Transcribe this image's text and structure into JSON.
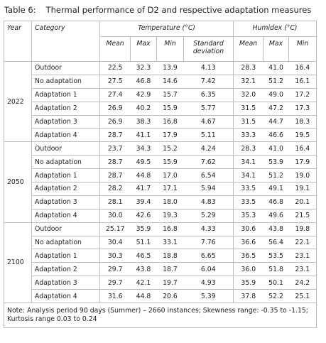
{
  "title": {
    "label": "Table 6:",
    "text": "Thermal performance of D2 and respective adaptation measures"
  },
  "header": {
    "year": "Year",
    "category": "Category",
    "temperature": "Temperature (°C)",
    "humidex": "Humidex (°C)",
    "sub": [
      "Mean",
      "Max",
      "Min",
      "Standard deviation",
      "Mean",
      "Max",
      "Min"
    ]
  },
  "groups": [
    {
      "year": "2022",
      "rows": [
        {
          "category": "Outdoor",
          "values": [
            "22.5",
            "32.3",
            "13.9",
            "4.13",
            "28.3",
            "41.0",
            "16.4"
          ]
        },
        {
          "category": "No adaptation",
          "values": [
            "27.5",
            "46.8",
            "14.6",
            "7.42",
            "32.1",
            "51.2",
            "16.1"
          ]
        },
        {
          "category": "Adaptation 1",
          "values": [
            "27.4",
            "42.9",
            "15.7",
            "6.35",
            "32.0",
            "49.0",
            "17.2"
          ]
        },
        {
          "category": "Adaptation 2",
          "values": [
            "26.9",
            "40.2",
            "15.9",
            "5.77",
            "31.5",
            "47.2",
            "17.3"
          ]
        },
        {
          "category": "Adaptation 3",
          "values": [
            "26.9",
            "38.3",
            "16.8",
            "4.67",
            "31.5",
            "44.7",
            "18.3"
          ]
        },
        {
          "category": "Adaptation 4",
          "values": [
            "28.7",
            "41.1",
            "17.9",
            "5.11",
            "33.3",
            "46.6",
            "19.5"
          ]
        }
      ]
    },
    {
      "year": "2050",
      "rows": [
        {
          "category": "Outdoor",
          "values": [
            "23.7",
            "34.3",
            "15.2",
            "4.24",
            "28.3",
            "41.0",
            "16.4"
          ]
        },
        {
          "category": "No adaptation",
          "values": [
            "28.7",
            "49.5",
            "15.9",
            "7.62",
            "34.1",
            "53.9",
            "17.9"
          ]
        },
        {
          "category": "Adaptation 1",
          "values": [
            "28.7",
            "44.8",
            "17.0",
            "6.54",
            "34.1",
            "51.2",
            "19.0"
          ]
        },
        {
          "category": "Adaptation 2",
          "values": [
            "28.2",
            "41.7",
            "17.1",
            "5.94",
            "33.5",
            "49.1",
            "19.1"
          ]
        },
        {
          "category": "Adaptation 3",
          "values": [
            "28.1",
            "39.4",
            "18.0",
            "4.83",
            "33.5",
            "46.8",
            "20.1"
          ]
        },
        {
          "category": "Adaptation 4",
          "values": [
            "30.0",
            "42.6",
            "19.3",
            "5.29",
            "35.3",
            "49.6",
            "21.5"
          ]
        }
      ]
    },
    {
      "year": "2100",
      "rows": [
        {
          "category": "Outdoor",
          "values": [
            "25.17",
            "35.9",
            "16.8",
            "4.33",
            "30.6",
            "43.8",
            "19.8"
          ]
        },
        {
          "category": "No adaptation",
          "values": [
            "30.4",
            "51.1",
            "33.1",
            "7.76",
            "36.6",
            "56.4",
            "22.1"
          ]
        },
        {
          "category": "Adaptation 1",
          "values": [
            "30.3",
            "46.5",
            "18.8",
            "6.65",
            "36.5",
            "53.5",
            "23.1"
          ]
        },
        {
          "category": "Adaptation 2",
          "values": [
            "29.7",
            "43.8",
            "18.7",
            "6.04",
            "36.0",
            "51.8",
            "23.1"
          ]
        },
        {
          "category": "Adaptation 3",
          "values": [
            "29.7",
            "42.1",
            "19.7",
            "4.93",
            "35.9",
            "50.1",
            "24.2"
          ]
        },
        {
          "category": "Adaptation 4",
          "values": [
            "31.6",
            "44.8",
            "20.6",
            "5.39",
            "37.8",
            "52.2",
            "25.1"
          ]
        }
      ]
    }
  ],
  "note": "Note: Analysis period 90 days (Summer) – 2660 instances; Skewness range: -0.35 to -1.15; Kurtosis range 0.03 to 0.24"
}
